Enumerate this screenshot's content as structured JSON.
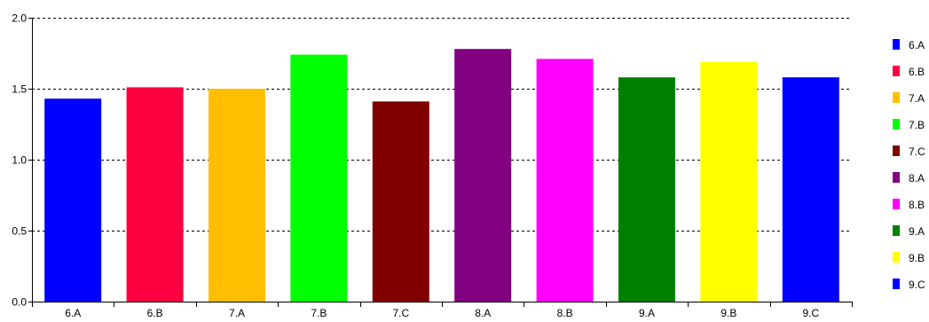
{
  "chart_data": {
    "type": "bar",
    "title": "",
    "xlabel": "",
    "ylabel": "",
    "ylim": [
      0,
      2.0
    ],
    "yticks": [
      "0.0",
      "0.5",
      "1.0",
      "1.5",
      "2.0"
    ],
    "grid": "horizontal dashed",
    "legend_position": "right",
    "categories": [
      "6.A",
      "6.B",
      "7.A",
      "7.B",
      "7.C",
      "8.A",
      "8.B",
      "9.A",
      "9.B",
      "9.C"
    ],
    "values": [
      1.43,
      1.51,
      1.5,
      1.74,
      1.41,
      1.78,
      1.71,
      1.58,
      1.69,
      1.58
    ],
    "colors": [
      "#0000ff",
      "#ff0040",
      "#ffbf00",
      "#00ff00",
      "#800000",
      "#800080",
      "#ff00ff",
      "#008000",
      "#ffff00",
      "#0000ff"
    ]
  }
}
